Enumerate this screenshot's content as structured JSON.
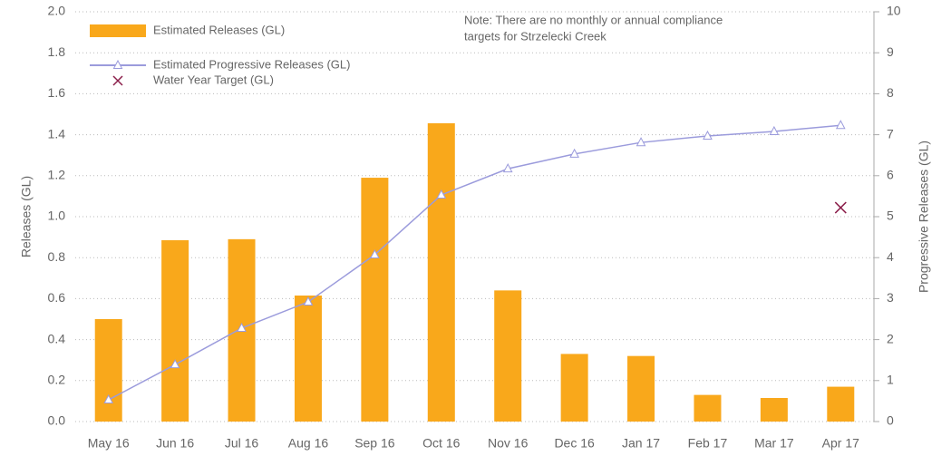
{
  "chart_data": {
    "type": "bar",
    "categories": [
      "May 16",
      "Jun 16",
      "Jul 16",
      "Aug 16",
      "Sep 16",
      "Oct 16",
      "Nov 16",
      "Dec 16",
      "Jan 17",
      "Feb 17",
      "Mar 17",
      "Apr 17"
    ],
    "series": [
      {
        "name": "Estimated Releases (GL)",
        "type": "bar",
        "color": "#f9a81b",
        "values": [
          0.5,
          0.885,
          0.89,
          0.615,
          1.19,
          1.456,
          0.64,
          0.33,
          0.32,
          0.13,
          0.115,
          0.17
        ]
      },
      {
        "name": "Estimated Progressive Releases (GL)",
        "type": "line",
        "axis": "y2",
        "color": "#9b9bdc",
        "values": [
          0.53,
          1.39,
          2.28,
          2.92,
          4.07,
          5.53,
          6.17,
          6.53,
          6.81,
          6.97,
          7.08,
          7.23
        ]
      },
      {
        "name": "Water Year Target (GL)",
        "type": "scatter",
        "axis": "y2",
        "color": "#8b1e4a",
        "values": [
          null,
          null,
          null,
          null,
          null,
          null,
          null,
          null,
          null,
          null,
          null,
          5.22
        ]
      }
    ],
    "ylabel": "Releases (GL)",
    "y2label": "Progressive Releases (GL)",
    "ylim": [
      0,
      2
    ],
    "yticks": [
      {
        "value": 0,
        "label": "0.0"
      },
      {
        "value": 0.2,
        "label": "0.2"
      },
      {
        "value": 0.4,
        "label": "0.4"
      },
      {
        "value": 0.6,
        "label": "0.6"
      },
      {
        "value": 0.8,
        "label": "0.8"
      },
      {
        "value": 1,
        "label": "1.0"
      },
      {
        "value": 1.2,
        "label": "1.2"
      },
      {
        "value": 1.4,
        "label": "1.4"
      },
      {
        "value": 1.6,
        "label": "1.6"
      },
      {
        "value": 1.8,
        "label": "1.8"
      },
      {
        "value": 2,
        "label": "2.0"
      }
    ],
    "y2lim": [
      0,
      10
    ],
    "y2ticks": [
      0,
      1,
      2,
      3,
      4,
      5,
      6,
      7,
      8,
      9,
      10
    ],
    "grid": true,
    "legend": "upper left",
    "note": [
      "Note: There are no monthly or annual compliance",
      "targets for Strzelecki Creek"
    ]
  }
}
